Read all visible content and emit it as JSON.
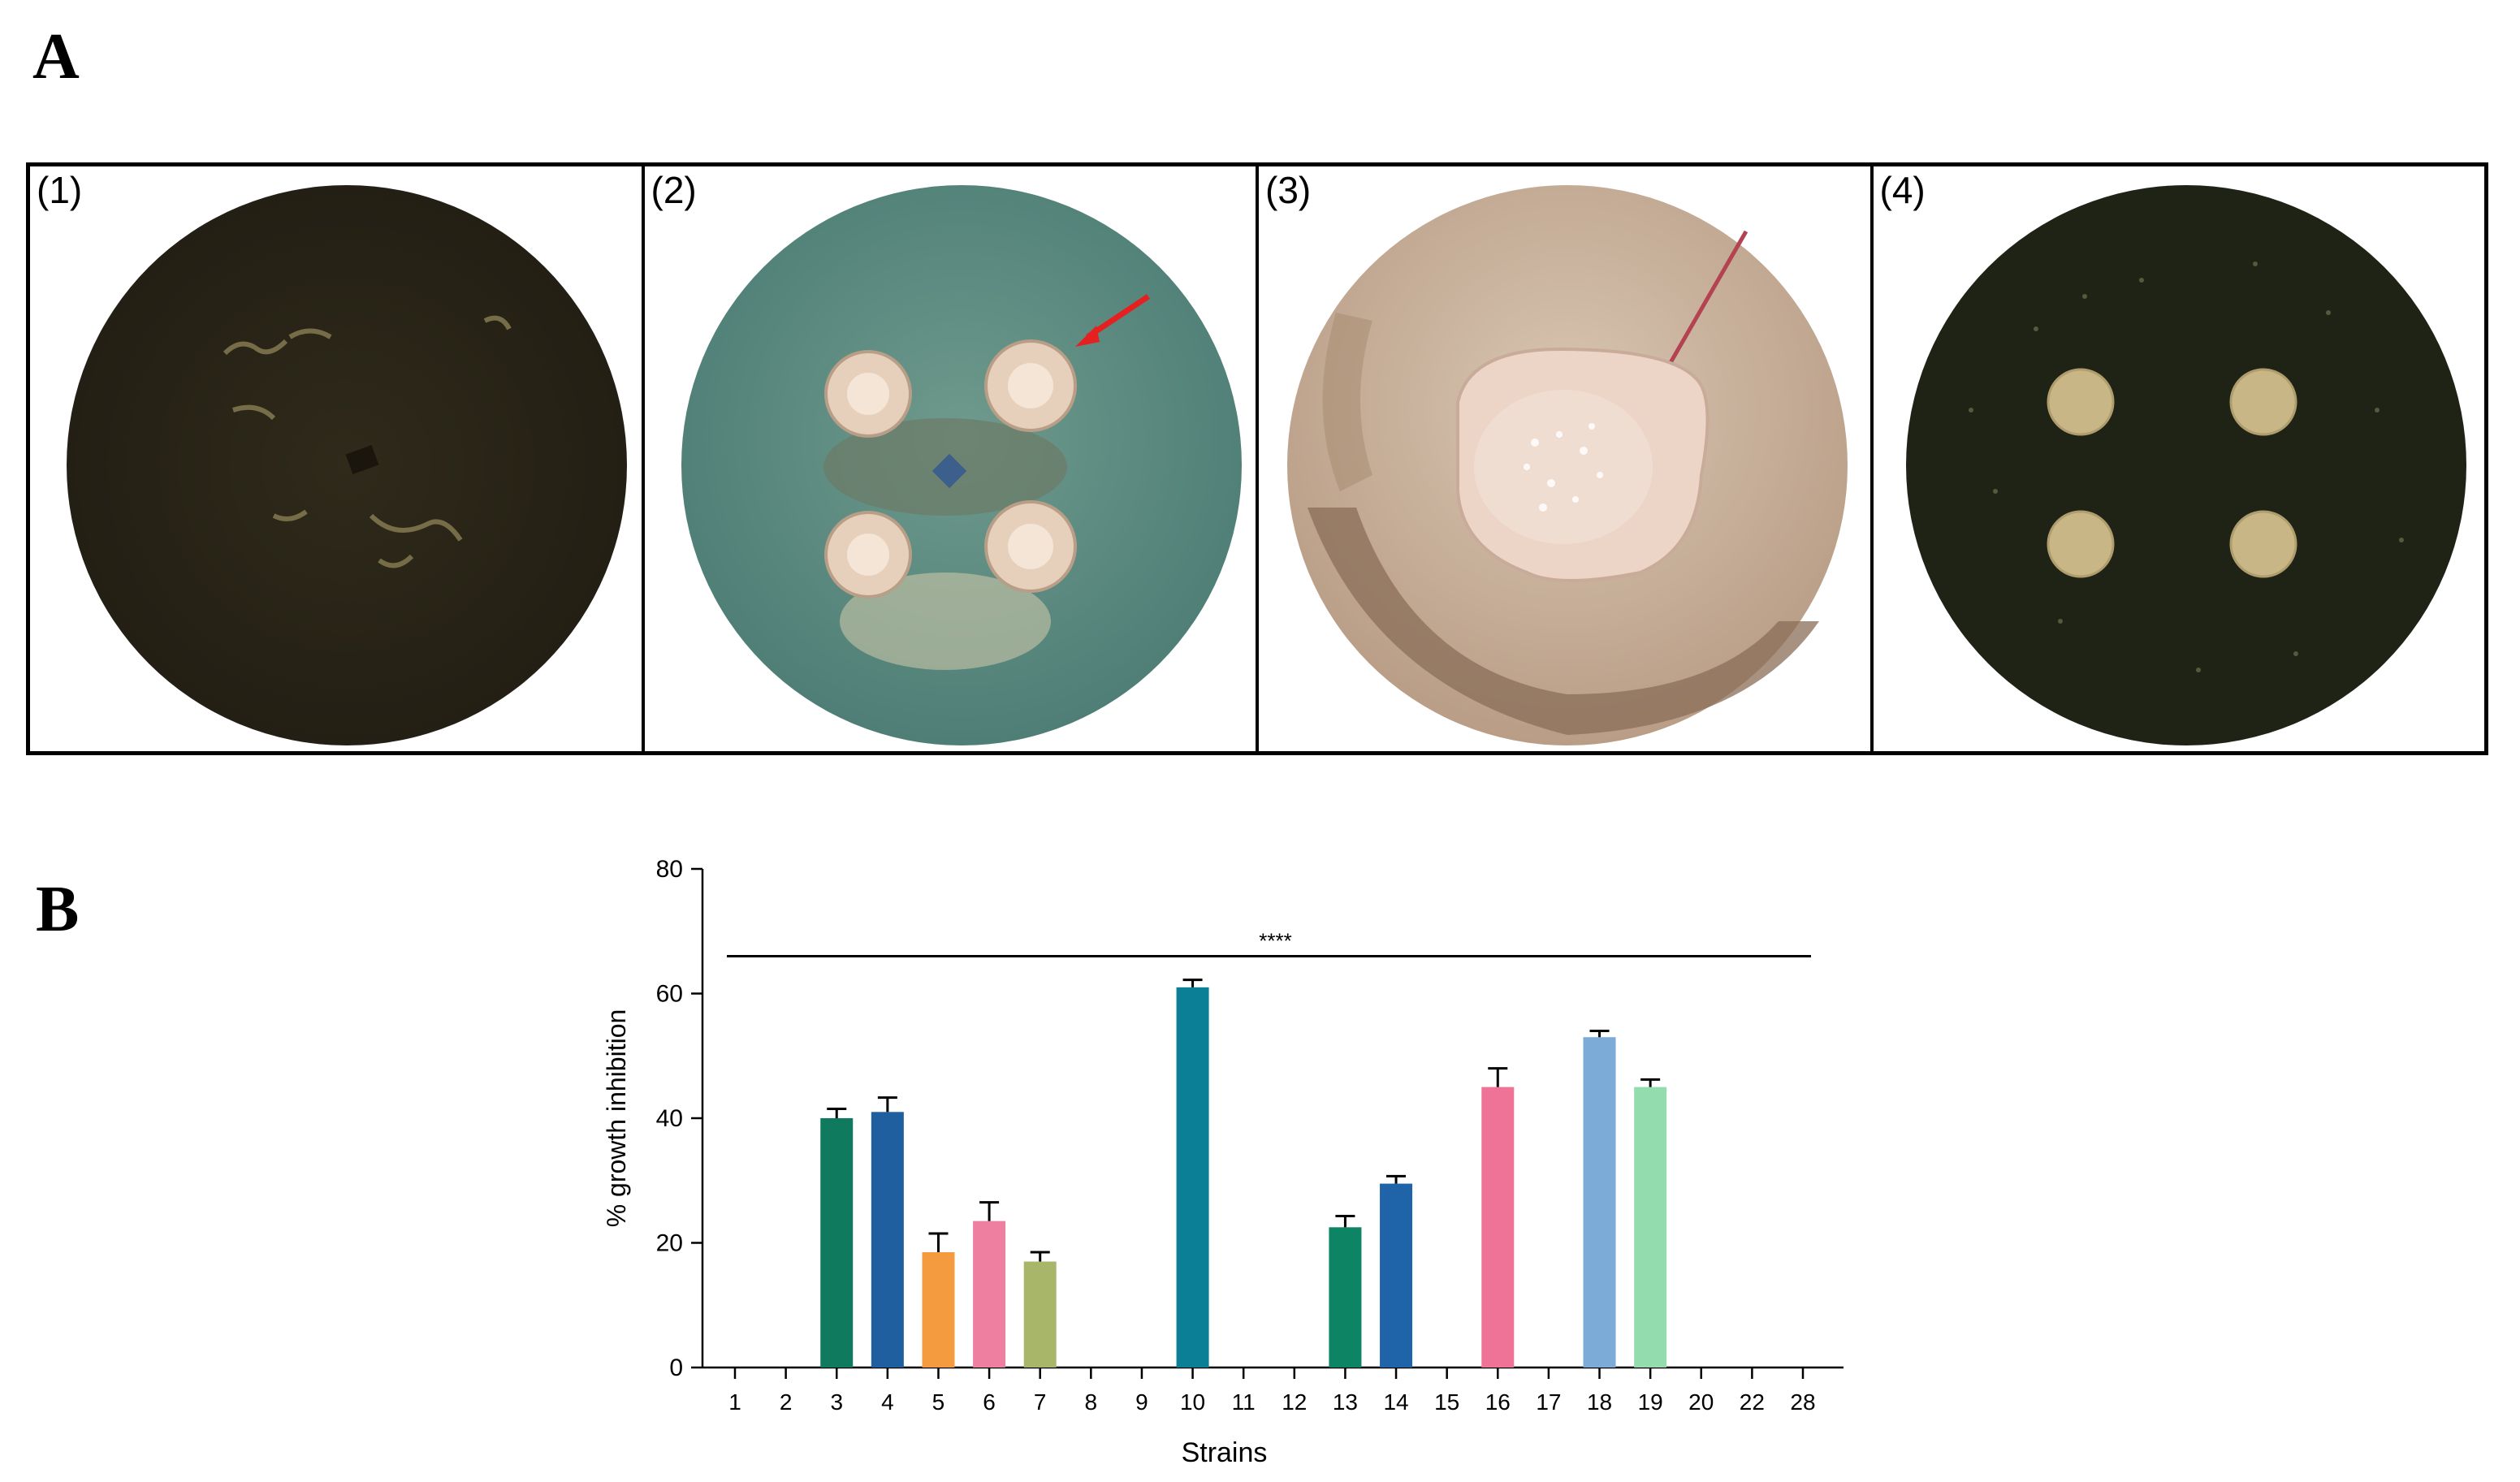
{
  "figure": {
    "panel_a_letter": "A",
    "panel_b_letter": "B",
    "plates": [
      {
        "label": "(1)",
        "description_icon": "fungal-plate-dark"
      },
      {
        "label": "(2)",
        "description_icon": "plate-with-four-colonies-arrow"
      },
      {
        "label": "(3)",
        "description_icon": "plate-with-central-colony"
      },
      {
        "label": "(4)",
        "description_icon": "plate-with-four-small-colonies"
      }
    ]
  },
  "chart_data": {
    "type": "bar",
    "xlabel": "Strains",
    "ylabel": "% growth inhibition",
    "ylim": [
      0,
      80
    ],
    "yticks": [
      0,
      20,
      40,
      60,
      80
    ],
    "significance_label": "****",
    "categories": [
      "1",
      "2",
      "3",
      "4",
      "5",
      "6",
      "7",
      "8",
      "9",
      "10",
      "11",
      "12",
      "13",
      "14",
      "15",
      "16",
      "17",
      "18",
      "19",
      "20",
      "22",
      "28"
    ],
    "values": [
      0,
      0,
      40,
      41,
      18.5,
      23.5,
      17,
      0,
      0,
      61,
      0,
      0,
      22.5,
      29.5,
      0,
      45,
      0,
      53,
      45,
      0,
      0,
      0
    ],
    "errors": [
      0,
      0,
      1.5,
      2.3,
      3,
      3,
      1.5,
      0,
      0,
      1.2,
      0,
      0,
      1.8,
      1.2,
      0,
      3,
      0,
      1,
      1.2,
      0,
      0,
      0
    ],
    "colors": [
      "#000000",
      "#000000",
      "#0f7a5e",
      "#1f5fa0",
      "#f49a3f",
      "#ee7fa0",
      "#a8b66a",
      "#000000",
      "#000000",
      "#0a7f96",
      "#000000",
      "#000000",
      "#0d8463",
      "#1f63a8",
      "#000000",
      "#ee7396",
      "#000000",
      "#7cabd8",
      "#93dcae",
      "#000000",
      "#000000",
      "#000000"
    ]
  }
}
